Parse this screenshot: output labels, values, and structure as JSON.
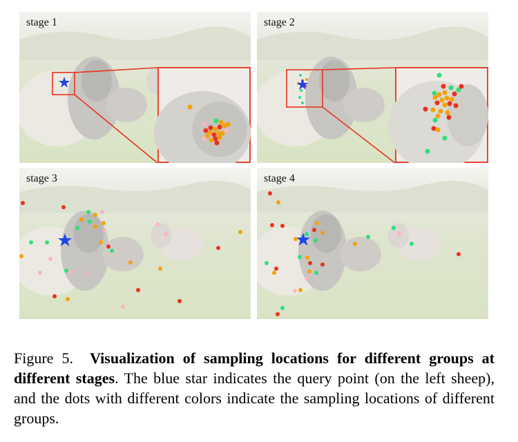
{
  "panels": [
    {
      "label": "stage 1"
    },
    {
      "label": "stage 2"
    },
    {
      "label": "stage 3"
    },
    {
      "label": "stage 4"
    }
  ],
  "colors": {
    "red": "#e8321e",
    "orange": "#f5a10a",
    "green": "#2ee07a",
    "pink": "#f7b7c0",
    "star": "#1f45e8",
    "box": "#e8321e"
  },
  "caption": {
    "figure_label": "Figure 5.",
    "bold_text": "Visualization of sampling locations for different groups at different stages",
    "rest_text": ". The blue star indicates the query point (on the left sheep), and the dots with different colors indicate the sampling locations of different groups."
  }
}
